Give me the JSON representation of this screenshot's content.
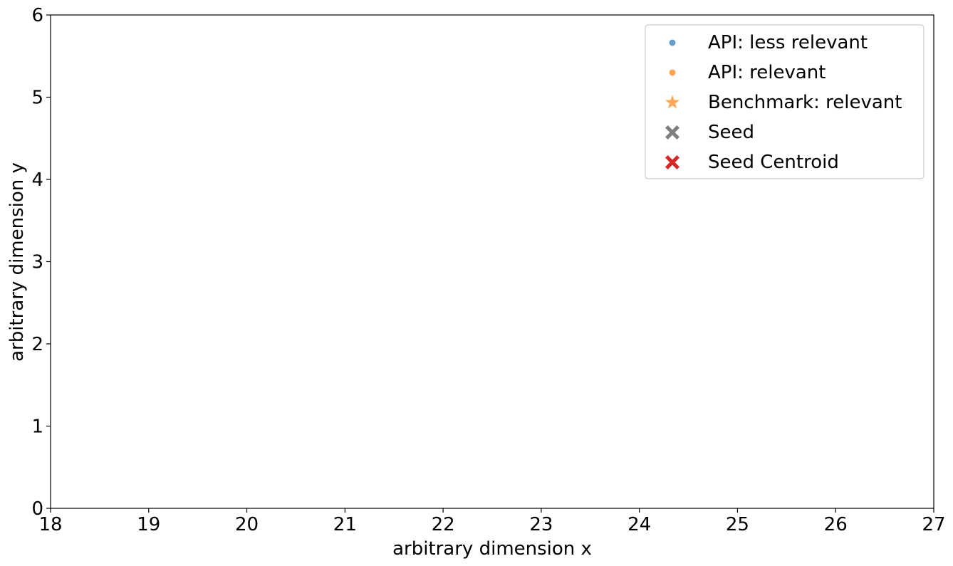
{
  "chart_data": {
    "type": "scatter",
    "title": "",
    "xlabel": "arbitrary dimension x",
    "ylabel": "arbitrary dimension y",
    "xlim": [
      18,
      27
    ],
    "ylim": [
      0,
      6
    ],
    "x_ticks": [
      "18",
      "19",
      "20",
      "21",
      "22",
      "23",
      "24",
      "25",
      "26",
      "27"
    ],
    "y_ticks": [
      "0",
      "1",
      "2",
      "3",
      "4",
      "5",
      "6"
    ],
    "grid": false,
    "legend_position": "top-right",
    "series": [
      {
        "name": "API: less relevant",
        "marker": "circle",
        "color": "#1f77b4",
        "points": []
      },
      {
        "name": "API: relevant",
        "marker": "circle",
        "color": "#ff7f0e",
        "points": []
      },
      {
        "name": "Benchmark: relevant",
        "marker": "star",
        "color": "#ff7f0e",
        "points": []
      },
      {
        "name": "Seed",
        "marker": "x-filled",
        "color": "#7f7f7f",
        "points": []
      },
      {
        "name": "Seed Centroid",
        "marker": "x-filled",
        "color": "#d62728",
        "points": []
      }
    ]
  }
}
